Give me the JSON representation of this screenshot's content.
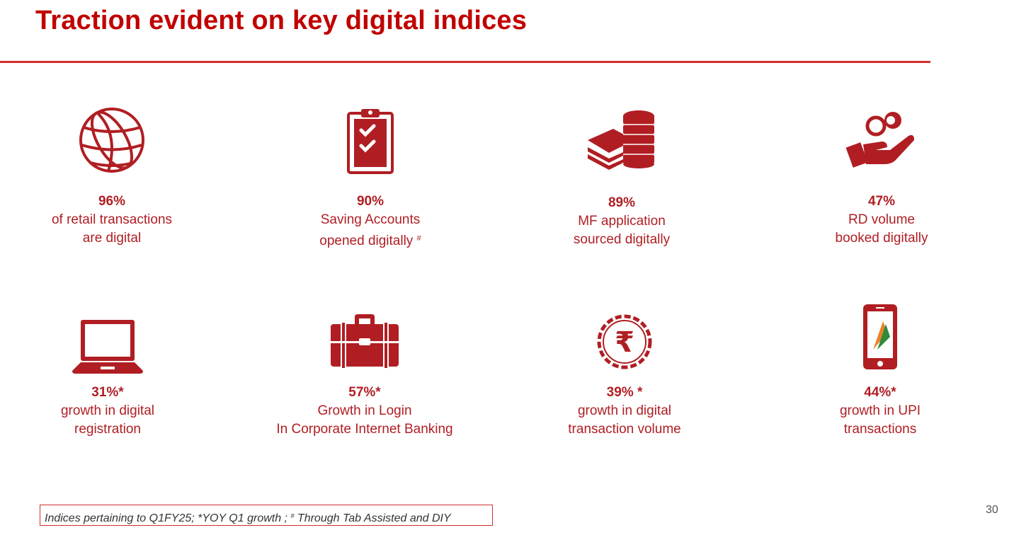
{
  "title": "Traction evident on key digital indices",
  "tiles": [
    {
      "icon": "globe-icon",
      "value": "96%",
      "lines": [
        "of retail transactions",
        "are digital"
      ],
      "sup": ""
    },
    {
      "icon": "clipboard-checklist-icon",
      "value": "90%",
      "lines": [
        "Saving Accounts",
        "opened digitally"
      ],
      "sup": "#"
    },
    {
      "icon": "cash-coins-stack-icon",
      "value": "89%",
      "lines": [
        "MF application",
        "sourced digitally"
      ],
      "sup": ""
    },
    {
      "icon": "hand-coins-icon",
      "value": "47%",
      "lines": [
        "RD volume",
        "booked digitally"
      ],
      "sup": ""
    },
    {
      "icon": "laptop-icon",
      "value": "31%*",
      "lines": [
        "growth in digital",
        "registration"
      ],
      "sup": ""
    },
    {
      "icon": "briefcase-icon",
      "value": "57%*",
      "lines": [
        "Growth in Login",
        "In Corporate Internet Banking"
      ],
      "sup": ""
    },
    {
      "icon": "rupee-badge-icon",
      "value": "39% *",
      "lines": [
        "growth in digital",
        "transaction volume"
      ],
      "sup": ""
    },
    {
      "icon": "smartphone-upi-icon",
      "value": "44%*",
      "lines": [
        "growth in UPI",
        "transactions"
      ],
      "sup": ""
    }
  ],
  "footnote": {
    "part1": "Indices pertaining to Q1FY25; *YOY Q1 growth ; ",
    "sup": "#",
    "part2": " Through Tab Assisted and DIY"
  },
  "page_number": "30",
  "colors": {
    "accent": "#b01e23",
    "title": "#c00000",
    "rule": "#d32f2f"
  }
}
